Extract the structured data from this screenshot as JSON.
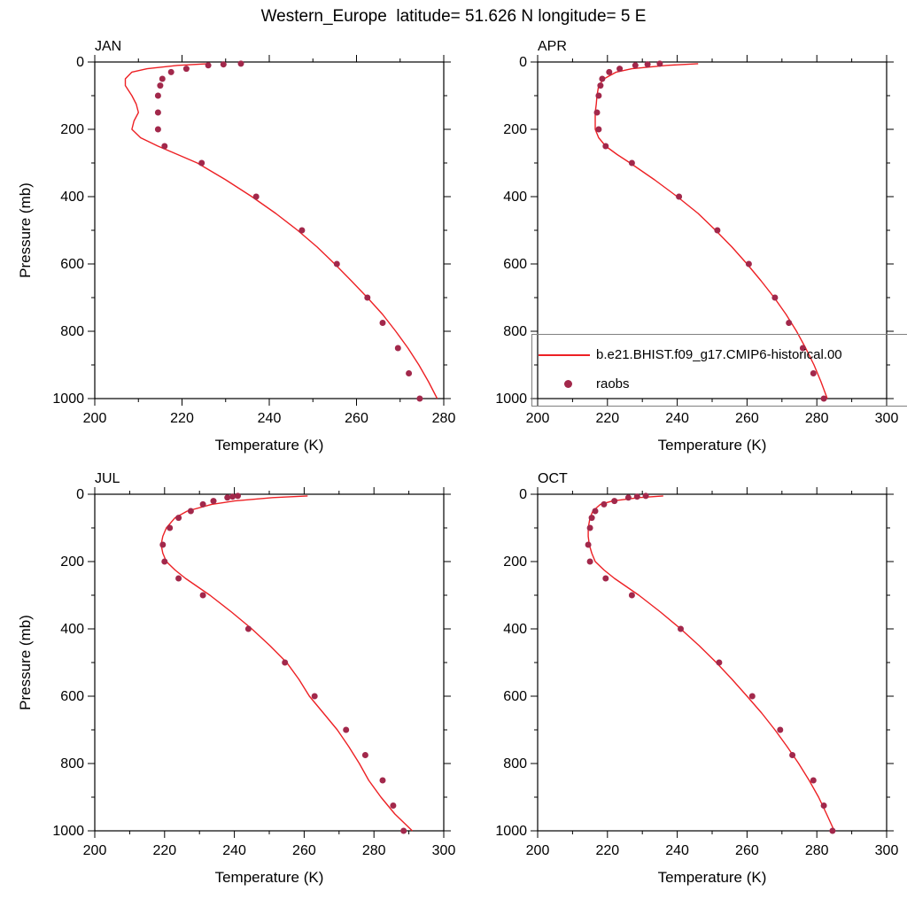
{
  "title": "Western_Europe  latitude= 51.626 N longitude= 5 E",
  "colors": {
    "model_line": "#ed2024",
    "obs_dot": "#a2284b",
    "axis": "#000000",
    "legend_border": "#808080"
  },
  "legend": {
    "position": "overlay lower-right of APR panel, clipped at right image edge",
    "model_label": "b.e21.BHIST.f09_g17.CMIP6-historical.00",
    "obs_label": "raobs"
  },
  "chart_data": [
    {
      "type": "line",
      "title": "JAN",
      "xlabel": "Temperature (K)",
      "ylabel": "Pressure (mb)",
      "xlim": [
        200,
        280
      ],
      "xticks": [
        200,
        220,
        240,
        260,
        280
      ],
      "xminor": 10,
      "ylim": [
        0,
        1000
      ],
      "yticks": [
        0,
        200,
        400,
        600,
        800,
        1000
      ],
      "yminor": 100,
      "y_axis_inverted": true,
      "grid": false,
      "series": [
        {
          "name": "model",
          "label": "b.e21.BHIST.f09_g17.CMIP6-historical.00",
          "style": "line",
          "pressure_mb": [
            5,
            10,
            20,
            30,
            50,
            70,
            100,
            125,
            150,
            175,
            200,
            225,
            250,
            275,
            300,
            350,
            400,
            450,
            500,
            550,
            600,
            650,
            700,
            750,
            800,
            850,
            900,
            950,
            1000
          ],
          "temperature_K": [
            226,
            219,
            212,
            208.5,
            207,
            207,
            208.5,
            209.5,
            210,
            209,
            208.5,
            210.5,
            214.5,
            219,
            223.5,
            230,
            236,
            241.5,
            246.5,
            251,
            255,
            258.8,
            262.5,
            266,
            269,
            271.8,
            274.3,
            276.5,
            278.5
          ]
        },
        {
          "name": "raobs",
          "label": "raobs",
          "style": "points",
          "pressure_mb": [
            1000,
            925,
            850,
            775,
            700,
            600,
            500,
            400,
            300,
            250,
            200,
            150,
            100,
            70,
            50,
            30,
            20,
            10,
            7,
            5
          ],
          "temperature_K": [
            274.5,
            272,
            269.5,
            266,
            262.5,
            255.5,
            247.5,
            237,
            224.5,
            216,
            214.5,
            214.5,
            214.5,
            215,
            215.5,
            217.5,
            221,
            226,
            229.5,
            233.5
          ]
        }
      ]
    },
    {
      "type": "line",
      "title": "APR",
      "xlabel": "Temperature (K)",
      "ylabel": "Pressure (mb)",
      "xlim": [
        200,
        300
      ],
      "xticks": [
        200,
        220,
        240,
        260,
        280,
        300
      ],
      "xminor": 10,
      "ylim": [
        0,
        1000
      ],
      "yticks": [
        0,
        200,
        400,
        600,
        800,
        1000
      ],
      "yminor": 100,
      "y_axis_inverted": true,
      "grid": false,
      "series": [
        {
          "name": "model",
          "label": "b.e21.BHIST.f09_g17.CMIP6-historical.00",
          "style": "line",
          "pressure_mb": [
            5,
            10,
            20,
            30,
            50,
            70,
            100,
            125,
            150,
            175,
            200,
            225,
            250,
            275,
            300,
            350,
            400,
            450,
            500,
            550,
            600,
            650,
            700,
            750,
            800,
            850,
            900,
            950,
            1000
          ],
          "temperature_K": [
            246,
            237,
            227,
            222.5,
            219,
            217.5,
            217,
            216.8,
            216.5,
            216.5,
            216.5,
            217.5,
            219.5,
            222.8,
            226.5,
            233.5,
            240,
            246,
            251,
            255.7,
            260,
            264,
            267.8,
            271.2,
            274.2,
            276.8,
            279.2,
            281.2,
            283
          ]
        },
        {
          "name": "raobs",
          "label": "raobs",
          "style": "points",
          "pressure_mb": [
            1000,
            925,
            850,
            775,
            700,
            600,
            500,
            400,
            300,
            250,
            200,
            150,
            100,
            70,
            50,
            30,
            20,
            10,
            7,
            5
          ],
          "temperature_K": [
            282,
            279,
            276,
            272,
            268,
            260.5,
            251.5,
            240.5,
            227,
            219.5,
            217.5,
            217,
            217.5,
            218,
            218.5,
            220.5,
            223.5,
            228,
            231.5,
            235
          ]
        }
      ]
    },
    {
      "type": "line",
      "title": "JUL",
      "xlabel": "Temperature (K)",
      "ylabel": "Pressure (mb)",
      "xlim": [
        200,
        300
      ],
      "xticks": [
        200,
        220,
        240,
        260,
        280,
        300
      ],
      "xminor": 10,
      "ylim": [
        0,
        1000
      ],
      "yticks": [
        0,
        200,
        400,
        600,
        800,
        1000
      ],
      "yminor": 100,
      "y_axis_inverted": true,
      "grid": false,
      "series": [
        {
          "name": "model",
          "label": "b.e21.BHIST.f09_g17.CMIP6-historical.00",
          "style": "line",
          "pressure_mb": [
            5,
            10,
            20,
            30,
            50,
            70,
            100,
            125,
            150,
            175,
            200,
            225,
            250,
            275,
            300,
            350,
            400,
            450,
            500,
            550,
            600,
            650,
            700,
            750,
            800,
            850,
            900,
            950,
            1000
          ],
          "temperature_K": [
            261,
            251,
            240,
            233.5,
            226.5,
            223,
            220.5,
            219.5,
            219,
            219.5,
            220.5,
            223,
            226,
            229.5,
            233,
            239.2,
            245,
            250.2,
            255,
            258.5,
            261.5,
            265.5,
            269.5,
            272.8,
            275.8,
            278.5,
            282,
            286,
            291
          ]
        },
        {
          "name": "raobs",
          "label": "raobs",
          "style": "points",
          "pressure_mb": [
            1000,
            925,
            850,
            775,
            700,
            600,
            500,
            400,
            300,
            250,
            200,
            150,
            100,
            70,
            50,
            30,
            20,
            10,
            7,
            5
          ],
          "temperature_K": [
            288.5,
            285.5,
            282.5,
            277.5,
            272,
            263,
            254.5,
            244,
            231,
            224,
            220,
            219.5,
            221.5,
            224,
            227.5,
            231,
            234,
            238,
            239.5,
            241
          ]
        }
      ]
    },
    {
      "type": "line",
      "title": "OCT",
      "xlabel": "Temperature (K)",
      "ylabel": "Pressure (mb)",
      "xlim": [
        200,
        300
      ],
      "xticks": [
        200,
        220,
        240,
        260,
        280,
        300
      ],
      "xminor": 10,
      "ylim": [
        0,
        1000
      ],
      "yticks": [
        0,
        200,
        400,
        600,
        800,
        1000
      ],
      "yminor": 100,
      "y_axis_inverted": true,
      "grid": false,
      "series": [
        {
          "name": "model",
          "label": "b.e21.BHIST.f09_g17.CMIP6-historical.00",
          "style": "line",
          "pressure_mb": [
            5,
            10,
            20,
            30,
            50,
            70,
            100,
            125,
            150,
            175,
            200,
            225,
            250,
            275,
            300,
            350,
            400,
            450,
            500,
            550,
            600,
            650,
            700,
            750,
            800,
            850,
            900,
            950,
            1000
          ],
          "temperature_K": [
            236,
            229,
            221.5,
            218,
            215.8,
            215,
            214.5,
            214.5,
            214.8,
            215.5,
            216.5,
            219,
            222,
            225.5,
            229,
            235.2,
            241,
            246.3,
            251.2,
            255.7,
            260,
            264.2,
            268,
            271.5,
            274.8,
            277.8,
            280.5,
            282.8,
            285
          ]
        },
        {
          "name": "raobs",
          "label": "raobs",
          "style": "points",
          "pressure_mb": [
            1000,
            925,
            850,
            775,
            700,
            600,
            500,
            400,
            300,
            250,
            200,
            150,
            100,
            70,
            50,
            30,
            20,
            10,
            7,
            5
          ],
          "temperature_K": [
            284.5,
            282,
            279,
            273,
            269.5,
            261.5,
            252,
            241,
            227,
            219.5,
            215,
            214.5,
            215,
            215.5,
            216.5,
            219,
            222,
            226,
            228.5,
            231
          ]
        }
      ]
    }
  ]
}
